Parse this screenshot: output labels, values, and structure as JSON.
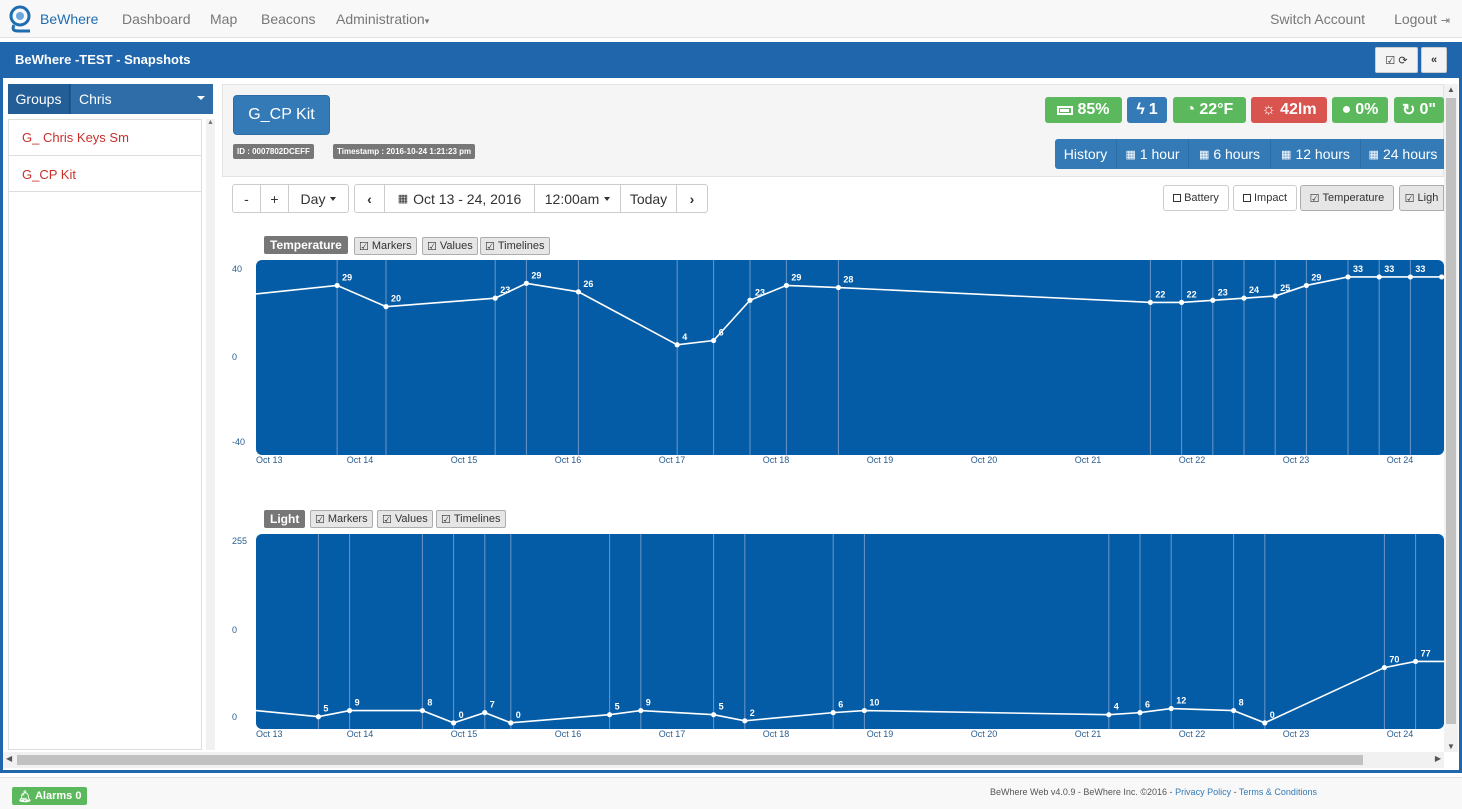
{
  "nav": {
    "brand": "BeWhere",
    "items": [
      "Dashboard",
      "Map",
      "Beacons",
      "Administration"
    ],
    "switch_account": "Switch Account",
    "logout": "Logout"
  },
  "panel": {
    "title": "BeWhere -TEST - Snapshots"
  },
  "sidebar": {
    "groups_label": "Groups",
    "group_selected": "Chris",
    "devices": [
      "G_ Chris Keys Sm",
      "G_CP Kit"
    ]
  },
  "device": {
    "name": "G_CP Kit",
    "id_tag": "ID : 0007802DCEFF",
    "timestamp_tag": "Timestamp : 2016-10-24 1:21:23 pm"
  },
  "stats": {
    "battery": "85%",
    "impact": "1",
    "temperature": "22°F",
    "light": "42lm",
    "humidity": "0%",
    "angle": "0\""
  },
  "history": {
    "label": "History",
    "ranges": [
      "1 hour",
      "6 hours",
      "12 hours",
      "24 hours"
    ]
  },
  "toolbar": {
    "minus": "-",
    "plus": "+",
    "period": "Day",
    "date_range": "Oct 13 - 24, 2016",
    "time": "12:00am",
    "today": "Today"
  },
  "toggles": [
    "Battery",
    "Impact",
    "Temperature",
    "Ligh"
  ],
  "temp_chart": {
    "label": "Temperature",
    "options": [
      "Markers",
      "Values",
      "Timelines"
    ]
  },
  "light_chart": {
    "label": "Light",
    "options": [
      "Markers",
      "Values",
      "Timelines"
    ]
  },
  "chart_data": [
    {
      "type": "line",
      "title": "Temperature",
      "x": [
        "Oct 13",
        "Oct 14",
        "Oct 15",
        "Oct 16",
        "Oct 17",
        "Oct 18",
        "Oct 19",
        "Oct 20",
        "Oct 21",
        "Oct 22",
        "Oct 23",
        "Oct 24"
      ],
      "ylim": [
        -40,
        40
      ],
      "yticks": [
        "40",
        "0",
        "-40"
      ],
      "points": [
        {
          "day": 0.0,
          "v": 28,
          "label": ""
        },
        {
          "day": 0.78,
          "v": 32,
          "label": "29"
        },
        {
          "day": 1.25,
          "v": 22,
          "label": "20"
        },
        {
          "day": 2.3,
          "v": 26,
          "label": "23"
        },
        {
          "day": 2.6,
          "v": 33,
          "label": "29"
        },
        {
          "day": 3.1,
          "v": 29,
          "label": "26"
        },
        {
          "day": 4.05,
          "v": 4,
          "label": "4"
        },
        {
          "day": 4.4,
          "v": 6,
          "label": "6"
        },
        {
          "day": 4.75,
          "v": 25,
          "label": "23"
        },
        {
          "day": 5.1,
          "v": 32,
          "label": "29"
        },
        {
          "day": 5.6,
          "v": 31,
          "label": "28"
        },
        {
          "day": 8.6,
          "v": 24,
          "label": "22"
        },
        {
          "day": 8.9,
          "v": 24,
          "label": "22"
        },
        {
          "day": 9.2,
          "v": 25,
          "label": "23"
        },
        {
          "day": 9.5,
          "v": 26,
          "label": "24"
        },
        {
          "day": 9.8,
          "v": 27,
          "label": "25"
        },
        {
          "day": 10.1,
          "v": 32,
          "label": "29"
        },
        {
          "day": 10.5,
          "v": 36,
          "label": "33"
        },
        {
          "day": 10.8,
          "v": 36,
          "label": "33"
        },
        {
          "day": 11.1,
          "v": 36,
          "label": "33"
        },
        {
          "day": 11.4,
          "v": 36,
          "label": ""
        }
      ],
      "timelines": [
        0.78,
        1.25,
        2.3,
        2.6,
        3.1,
        4.05,
        4.4,
        4.75,
        5.1,
        5.6,
        8.6,
        8.9,
        9.2,
        9.5,
        9.8,
        10.1,
        10.5,
        10.8,
        11.1
      ]
    },
    {
      "type": "line",
      "title": "Light",
      "x": [
        "Oct 13",
        "Oct 14",
        "Oct 15",
        "Oct 16",
        "Oct 17",
        "Oct 18",
        "Oct 19",
        "Oct 20",
        "Oct 21",
        "Oct 22",
        "Oct 23",
        "Oct 24"
      ],
      "yticks": [
        "255",
        "0",
        "0"
      ],
      "points": [
        {
          "day": 0.0,
          "v": 3,
          "label": ""
        },
        {
          "day": 0.6,
          "v": 0,
          "label": "5"
        },
        {
          "day": 0.9,
          "v": 3,
          "label": "9"
        },
        {
          "day": 1.6,
          "v": 3,
          "label": "8"
        },
        {
          "day": 1.9,
          "v": -3,
          "label": "0"
        },
        {
          "day": 2.2,
          "v": 2,
          "label": "7"
        },
        {
          "day": 2.45,
          "v": -3,
          "label": "0"
        },
        {
          "day": 3.4,
          "v": 1,
          "label": "5"
        },
        {
          "day": 3.7,
          "v": 3,
          "label": "9"
        },
        {
          "day": 4.4,
          "v": 1,
          "label": "5"
        },
        {
          "day": 4.7,
          "v": -2,
          "label": "2"
        },
        {
          "day": 5.55,
          "v": 2,
          "label": "6"
        },
        {
          "day": 5.85,
          "v": 3,
          "label": "10"
        },
        {
          "day": 8.2,
          "v": 1,
          "label": "4"
        },
        {
          "day": 8.5,
          "v": 2,
          "label": "6"
        },
        {
          "day": 8.8,
          "v": 4,
          "label": "12"
        },
        {
          "day": 9.4,
          "v": 3,
          "label": "8"
        },
        {
          "day": 9.7,
          "v": -3,
          "label": "0"
        },
        {
          "day": 10.85,
          "v": 24,
          "label": "70"
        },
        {
          "day": 11.15,
          "v": 27,
          "label": "77"
        },
        {
          "day": 11.45,
          "v": 27,
          "label": ""
        }
      ],
      "timelines": [
        0.6,
        0.9,
        1.6,
        1.9,
        2.2,
        2.45,
        3.4,
        3.7,
        4.4,
        4.7,
        5.55,
        5.85,
        8.2,
        8.5,
        8.8,
        9.4,
        9.7,
        10.85,
        11.15
      ]
    }
  ],
  "footer": {
    "alarms": "Alarms 0",
    "copyright": "BeWhere Web v4.0.9 - BeWhere Inc. ©2016 - ",
    "privacy": "Privacy Policy",
    "terms": "Terms & Conditions"
  }
}
